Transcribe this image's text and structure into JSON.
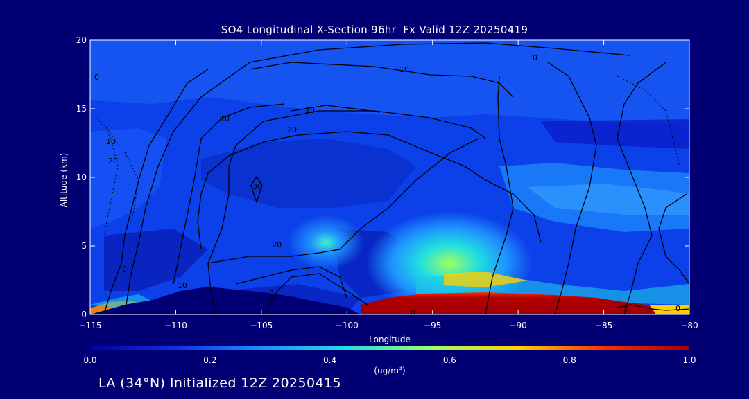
{
  "chart_data": {
    "type": "heatmap",
    "title": "SO4 Longitudinal X-Section 96hr  Fx Valid 12Z 20250419",
    "xlabel": "Longitude",
    "ylabel": "Altitude (km)",
    "xlim": [
      -115,
      -80
    ],
    "ylim": [
      0,
      20
    ],
    "x_ticks": [
      "-115",
      "-110",
      "-105",
      "-100",
      "-95",
      "-90",
      "-85",
      "-80"
    ],
    "y_ticks": [
      "0",
      "5",
      "10",
      "15",
      "20"
    ],
    "colorbar": {
      "min": 0.0,
      "max": 1.0,
      "tick_labels": [
        "0.0",
        "0.2",
        "0.4",
        "0.6",
        "0.8",
        "1.0"
      ],
      "unit_text": "(ug/m",
      "unit_sup": "3",
      "unit_tail": ")",
      "colors": [
        "#0000a0",
        "#1030e0",
        "#1e90ff",
        "#20e0e0",
        "#a0ff60",
        "#ffd000",
        "#ff3000",
        "#a00000"
      ]
    },
    "concentration_fields": [
      {
        "kind": "surface_layer",
        "x_range": [
          -98.5,
          -84.0
        ],
        "alt_range": [
          0.0,
          1.5
        ],
        "value": 1.0
      },
      {
        "kind": "plume",
        "center_lon": -93.5,
        "center_alt": 3.5,
        "value": 0.55
      },
      {
        "kind": "plume",
        "center_lon": -101.0,
        "center_alt": 5.0,
        "value": 0.45
      },
      {
        "kind": "upper_band",
        "alt_range": [
          11.5,
          14.0
        ],
        "value": 0.05
      },
      {
        "kind": "mid_band_east",
        "x_range": [
          -90,
          -80
        ],
        "alt_range": [
          6,
          11
        ],
        "value": 0.3
      }
    ],
    "terrain": [
      [
        -115,
        0.1
      ],
      [
        -113,
        0.3
      ],
      [
        -110,
        1.6
      ],
      [
        -108.5,
        2.0
      ],
      [
        -107,
        1.6
      ],
      [
        -105,
        1.4
      ],
      [
        -103,
        1.2
      ],
      [
        -101,
        0.8
      ],
      [
        -99,
        0.3
      ],
      [
        -97,
        0.1
      ]
    ],
    "contour_labels": [
      "0",
      "0",
      "0",
      "0",
      "0",
      "0",
      "10",
      "10",
      "10",
      "10",
      "20",
      "20",
      "20",
      "20",
      "30",
      "0"
    ]
  },
  "footer": "LA (34°N) Initialized 12Z 20250415"
}
